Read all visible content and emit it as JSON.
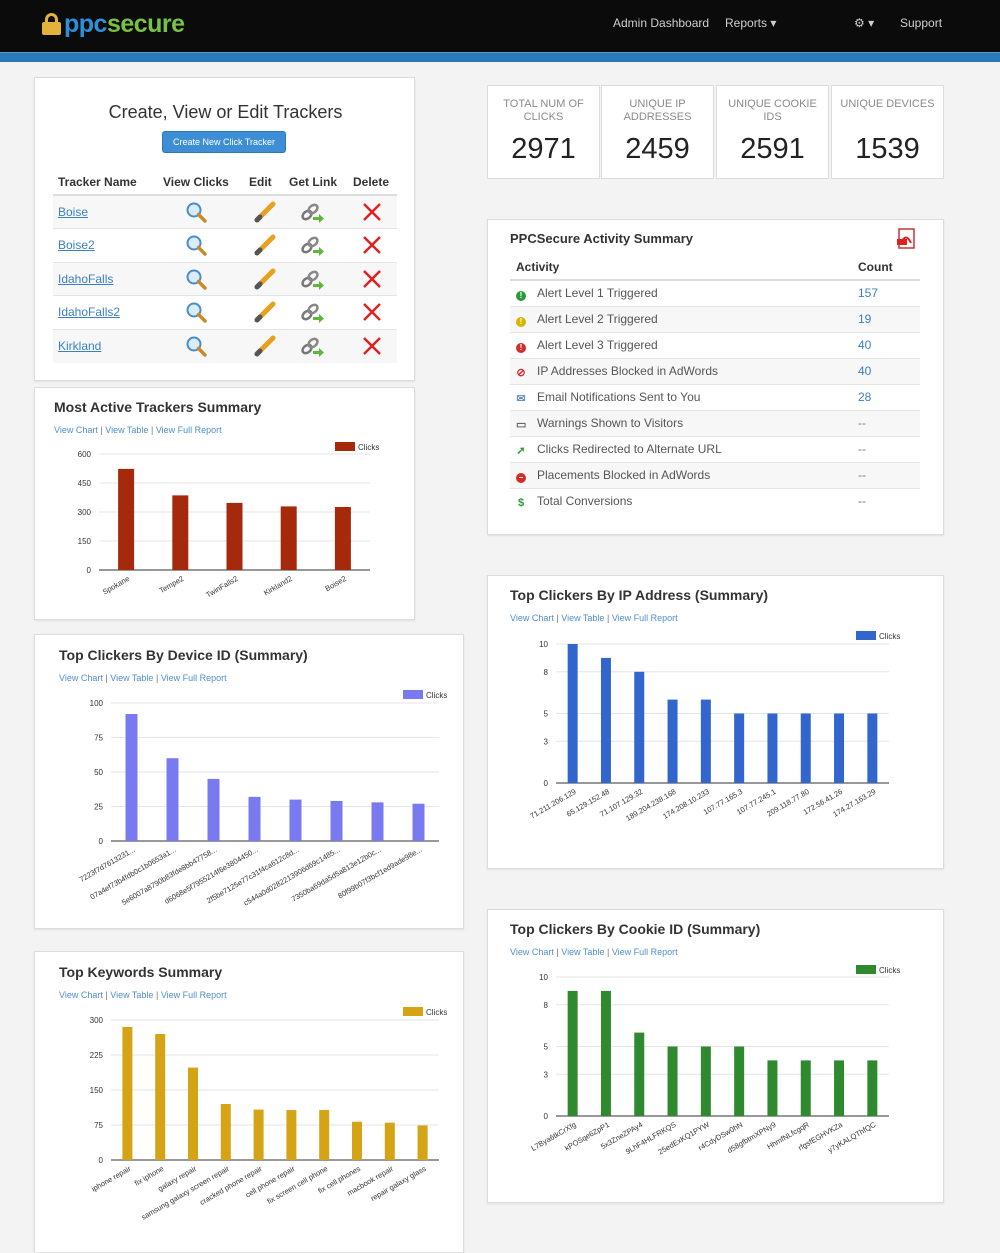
{
  "header": {
    "logo_ppc": "ppc",
    "logo_secure": "secure",
    "nav": {
      "admin_dashboard": "Admin Dashboard",
      "reports": "Reports ▾",
      "settings": "⚙ ▾",
      "support": "Support"
    }
  },
  "trackers": {
    "title": "Create, View or Edit Trackers",
    "create_button": "Create New Click Tracker",
    "columns": [
      "Tracker Name",
      "View Clicks",
      "Edit",
      "Get Link",
      "Delete"
    ],
    "rows": [
      "Boise",
      "Boise2",
      "IdahoFalls",
      "IdahoFalls2",
      "Kirkland"
    ]
  },
  "stats": [
    {
      "label": "TOTAL NUM OF CLICKS",
      "value": "2971"
    },
    {
      "label": "UNIQUE IP ADDRESSES",
      "value": "2459"
    },
    {
      "label": "UNIQUE COOKIE IDs",
      "value": "2591"
    },
    {
      "label": "UNIQUE DEVICES",
      "value": "1539"
    }
  ],
  "activity": {
    "title": "PPCSecure Activity Summary",
    "col_activity": "Activity",
    "col_count": "Count",
    "rows": [
      {
        "label": "Alert Level 1 Triggered",
        "count": "157",
        "icon": "alert-level-1-icon",
        "color": "#2a9a3a"
      },
      {
        "label": "Alert Level 2 Triggered",
        "count": "19",
        "icon": "alert-level-2-icon",
        "color": "#d6b400"
      },
      {
        "label": "Alert Level 3 Triggered",
        "count": "40",
        "icon": "alert-level-3-icon",
        "color": "#d12b2b"
      },
      {
        "label": "IP Addresses Blocked in AdWords",
        "count": "40",
        "icon": "blocked-icon",
        "color": "#d12b2b"
      },
      {
        "label": "Email Notifications Sent to You",
        "count": "28",
        "icon": "envelope-icon",
        "color": "#6a8fc0"
      },
      {
        "label": "Warnings Shown to Visitors",
        "count": "--",
        "icon": "comment-icon",
        "color": "#666666"
      },
      {
        "label": "Clicks Redirected to Alternate URL",
        "count": "--",
        "icon": "redirect-icon",
        "color": "#3a9a3a"
      },
      {
        "label": "Placements Blocked in AdWords",
        "count": "--",
        "icon": "no-entry-icon",
        "color": "#d12b2b"
      },
      {
        "label": "Total Conversions",
        "count": "--",
        "icon": "dollar-icon",
        "color": "#2a9a3a"
      }
    ]
  },
  "links": {
    "view_chart": "View Chart",
    "view_table": "View Table",
    "view_full_report": "View Full Report",
    "sep": "|"
  },
  "chart_data": [
    {
      "id": "trackers",
      "type": "bar",
      "title": "Most Active Trackers Summary",
      "categories": [
        "Spokane",
        "Tempe2",
        "TwinFalls2",
        "Kirkland2",
        "Boise2"
      ],
      "series": [
        {
          "name": "Clicks",
          "values": [
            523,
            386,
            347,
            329,
            326
          ]
        }
      ],
      "ylim": [
        0,
        600
      ],
      "yticks": [
        0,
        150,
        300,
        450,
        600
      ],
      "color": "#a52a0c"
    },
    {
      "id": "ip",
      "type": "bar",
      "title": "Top Clickers By IP Address (Summary)",
      "categories": [
        "71.211.206.129",
        "65.129.152.48",
        "71.107.129.32",
        "189.204.238.168",
        "174.208.10.233",
        "107.77.165.3",
        "107.77.245.1",
        "209.118.77.80",
        "172.56.41.26",
        "174.27.163.29"
      ],
      "series": [
        {
          "name": "Clicks",
          "values": [
            10,
            9,
            8,
            6,
            6,
            5,
            5,
            5,
            5,
            5
          ]
        }
      ],
      "ylim": [
        0,
        10
      ],
      "yticks": [
        0,
        3,
        5,
        8,
        10
      ],
      "color": "#3366cc"
    },
    {
      "id": "device",
      "type": "bar",
      "title": "Top Clickers By Device ID (Summary)",
      "categories": [
        "7223f7d7613231...",
        "07a4ef73b4fdb0c1b0653a1...",
        "5e6007a8790b83fde8bb47758...",
        "d6068e5f7955214f6e3804450...",
        "2f5be7125e77c31f4ca612c8d...",
        "c544a0d0282213906d69c1485...",
        "7350ba69da5d5a813e12b0c...",
        "80f99b07f3bcf1ed9ade98e..."
      ],
      "series": [
        {
          "name": "Clicks",
          "values": [
            92,
            60,
            45,
            32,
            30,
            29,
            28,
            27
          ]
        }
      ],
      "ylim": [
        0,
        100
      ],
      "yticks": [
        0,
        25,
        50,
        75,
        100
      ],
      "color": "#7a7af0"
    },
    {
      "id": "cookie",
      "type": "bar",
      "title": "Top Clickers By Cookie ID (Summary)",
      "categories": [
        "L7Bya6tkCrXfg",
        "kPOSqe6ZpP1",
        "5x3ZneZPAy4",
        "9LhF4HLFRKQS",
        "25edExKQ1PYW",
        "r4CdyDSw0hN",
        "d58gfbtmXPNy9",
        "HhmfNLfcgqR",
        "rfgsfEGHVKZa",
        "y7yKALQThfQC"
      ],
      "series": [
        {
          "name": "Clicks",
          "values": [
            9,
            9,
            6,
            5,
            5,
            5,
            4,
            4,
            4,
            4
          ]
        }
      ],
      "ylim": [
        0,
        10
      ],
      "yticks": [
        0,
        3,
        5,
        8,
        10
      ],
      "color": "#2f8a2f"
    },
    {
      "id": "keywords",
      "type": "bar",
      "title": "Top Keywords Summary",
      "categories": [
        "iphone repair",
        "fix iphone",
        "galaxy repair",
        "samsung galaxy screen repair",
        "cracked phone repair",
        "cell phone repair",
        "fix screen cell phone",
        "fix cell phones",
        "macbook repair",
        "repair galaxy glass"
      ],
      "series": [
        {
          "name": "Clicks",
          "values": [
            285,
            270,
            198,
            120,
            108,
            107,
            107,
            82,
            80,
            74
          ]
        }
      ],
      "ylim": [
        0,
        300
      ],
      "yticks": [
        0,
        75,
        150,
        225,
        300
      ],
      "color": "#d4a316"
    }
  ]
}
